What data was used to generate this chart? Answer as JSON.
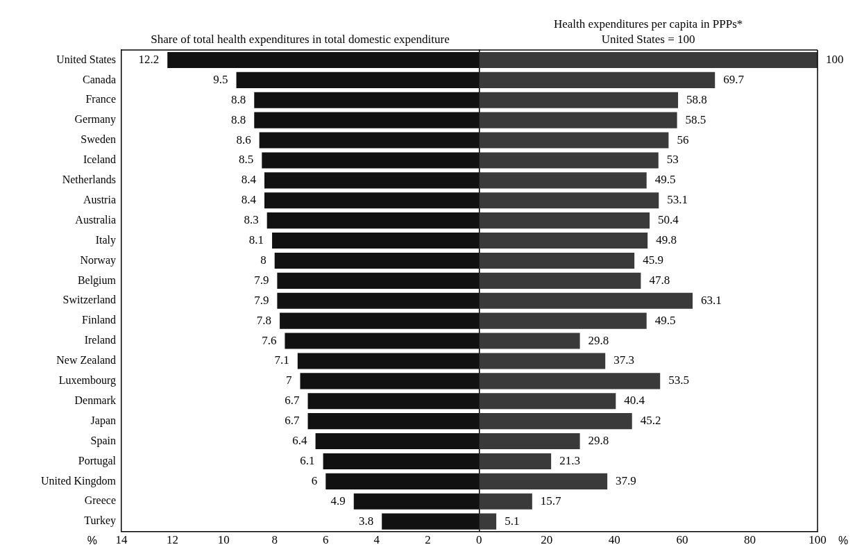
{
  "chart_data": [
    {
      "type": "bar",
      "orientation": "horizontal",
      "title": "Share of total health expenditures in total domestic expenditure",
      "xlabel": "%",
      "categories": [
        "United States",
        "Canada",
        "France",
        "Germany",
        "Sweden",
        "Iceland",
        "Netherlands",
        "Austria",
        "Australia",
        "Italy",
        "Norway",
        "Belgium",
        "Switzerland",
        "Finland",
        "Ireland",
        "New Zealand",
        "Luxembourg",
        "Denmark",
        "Japan",
        "Spain",
        "Portugal",
        "United Kingdom",
        "Greece",
        "Turkey"
      ],
      "values": [
        12.2,
        9.5,
        8.8,
        8.8,
        8.6,
        8.5,
        8.4,
        8.4,
        8.3,
        8.1,
        8,
        7.9,
        7.9,
        7.8,
        7.6,
        7.1,
        7,
        6.7,
        6.7,
        6.4,
        6.1,
        6,
        4.9,
        3.8
      ],
      "color": "#111111",
      "xlim": [
        14,
        0
      ],
      "xticks": [
        14,
        12,
        10,
        8,
        6,
        4,
        2
      ],
      "data_labels": true,
      "grid": false,
      "legend": false
    },
    {
      "type": "bar",
      "orientation": "horizontal",
      "title": "Health expenditures per capita in PPPs*\nUnited States = 100",
      "xlabel": "%",
      "categories": [
        null,
        null,
        null,
        null,
        null,
        null,
        null,
        null,
        null,
        null,
        null,
        null,
        null,
        null,
        null,
        null,
        null,
        null,
        null,
        null,
        null,
        null,
        null,
        null
      ],
      "values": [
        100,
        69.7,
        58.8,
        58.5,
        56,
        53,
        49.5,
        53.1,
        50.4,
        49.8,
        45.9,
        47.8,
        63.1,
        49.5,
        29.8,
        37.3,
        53.5,
        40.4,
        45.2,
        29.8,
        21.3,
        37.9,
        15.7,
        5.1
      ],
      "color": "#3a3a3a",
      "xlim": [
        0,
        100
      ],
      "xticks": [
        0,
        20,
        40,
        60,
        80,
        100
      ],
      "data_labels": true,
      "grid": false,
      "legend": false,
      "tick_labels": "x"
    }
  ]
}
